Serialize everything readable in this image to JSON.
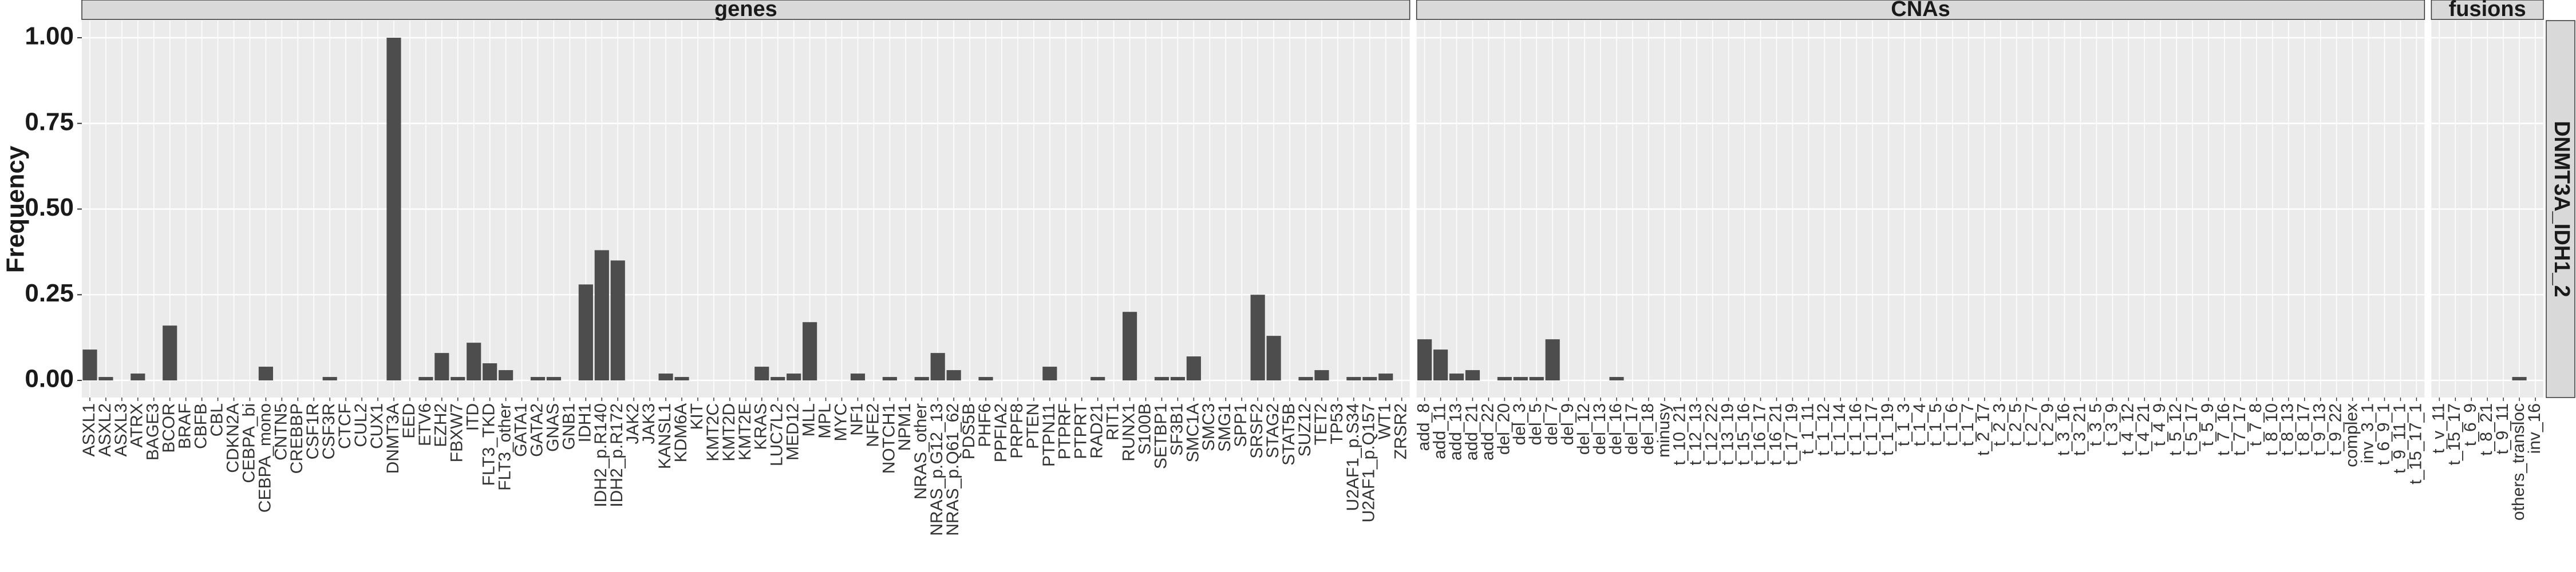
{
  "chart_data": {
    "type": "bar",
    "y_label": "Frequency",
    "row_label": "DNMT3A_IDH1_2",
    "color": "#4d4d4d",
    "grid": true,
    "ylim": [
      -0.05,
      1.05
    ],
    "yticks": [
      {
        "value": 0,
        "label": "0.00"
      },
      {
        "value": 0.25,
        "label": "0.25"
      },
      {
        "value": 0.5,
        "label": "0.50"
      },
      {
        "value": 0.75,
        "label": "0.75"
      },
      {
        "value": 1,
        "label": "1.00"
      }
    ],
    "facets": [
      {
        "name": "genes",
        "categories": [
          "ASXL1",
          "ASXL2",
          "ASXL3",
          "ATRX",
          "BAGE3",
          "BCOR",
          "BRAF",
          "CBFB",
          "CBL",
          "CDKN2A",
          "CEBPA_bi",
          "CEBPA_mono",
          "CNTN5",
          "CREBBP",
          "CSF1R",
          "CSF3R",
          "CTCF",
          "CUL2",
          "CUX1",
          "DNMT3A",
          "EED",
          "ETV6",
          "EZH2",
          "FBXW7",
          "ITD",
          "FLT3_TKD",
          "FLT3_other",
          "GATA1",
          "GATA2",
          "GNAS",
          "GNB1",
          "IDH1",
          "IDH2_p.R140",
          "IDH2_p.R172",
          "JAK2",
          "JAK3",
          "KANSL1",
          "KDM6A",
          "KIT",
          "KMT2C",
          "KMT2D",
          "KMT2E",
          "KRAS",
          "LUC7L2",
          "MED12",
          "MLL",
          "MPL",
          "MYC",
          "NF1",
          "NFE2",
          "NOTCH1",
          "NPM1",
          "NRAS_other",
          "NRAS_p.G12_13",
          "NRAS_p.Q61_62",
          "PDS5B",
          "PHF6",
          "PPFIA2",
          "PRPF8",
          "PTEN",
          "PTPN11",
          "PTPRF",
          "PTPRT",
          "RAD21",
          "RIT1",
          "RUNX1",
          "S100B",
          "SETBP1",
          "SF3B1",
          "SMC1A",
          "SMC3",
          "SMG1",
          "SPP1",
          "SRSF2",
          "STAG2",
          "STAT5B",
          "SUZ12",
          "TET2",
          "TP53",
          "U2AF1_p.S34",
          "U2AF1_p.Q157",
          "WT1",
          "ZRSR2"
        ],
        "values": [
          0.09,
          0.01,
          0,
          0.02,
          0,
          0.16,
          0,
          0,
          0,
          0,
          0,
          0.04,
          0,
          0,
          0,
          0.01,
          0,
          0,
          0,
          1.0,
          0,
          0.01,
          0.08,
          0.01,
          0.11,
          0.05,
          0.03,
          0,
          0.01,
          0.01,
          0,
          0.28,
          0.38,
          0.35,
          0,
          0,
          0.02,
          0.01,
          0,
          0,
          0,
          0,
          0.04,
          0.01,
          0.02,
          0.17,
          0,
          0,
          0.02,
          0,
          0.01,
          0,
          0.01,
          0.08,
          0.03,
          0,
          0.01,
          0,
          0,
          0,
          0.04,
          0,
          0,
          0.01,
          0,
          0.2,
          0,
          0.01,
          0.01,
          0.07,
          0,
          0,
          0,
          0.25,
          0.13,
          0,
          0.01,
          0.03,
          0,
          0.01,
          0.01,
          0.02,
          0
        ]
      },
      {
        "name": "CNAs",
        "categories": [
          "add_8",
          "add_11",
          "add_13",
          "add_21",
          "add_22",
          "del_20",
          "del_3",
          "del_5",
          "del_7",
          "del_9",
          "del_12",
          "del_13",
          "del_16",
          "del_17",
          "del_18",
          "minusy",
          "t_10_21",
          "t_12_13",
          "t_12_22",
          "t_13_19",
          "t_15_16",
          "t_16_17",
          "t_16_21",
          "t_17_19",
          "t_1_11",
          "t_1_12",
          "t_1_14",
          "t_1_16",
          "t_1_17",
          "t_1_19",
          "t_1_3",
          "t_1_4",
          "t_1_5",
          "t_1_6",
          "t_1_7",
          "t_2_17",
          "t_2_3",
          "t_2_5",
          "t_2_7",
          "t_2_9",
          "t_3_16",
          "t_3_21",
          "t_3_5",
          "t_3_9",
          "t_4_12",
          "t_4_21",
          "t_4_9",
          "t_5_12",
          "t_5_17",
          "t_5_9",
          "t_7_16",
          "t_7_17",
          "t_7_8",
          "t_8_10",
          "t_8_13",
          "t_8_17",
          "t_9_13",
          "t_9_22",
          "complex",
          "inv_3_1",
          "t_6_9_1",
          "t_9_11_1",
          "t_15_17_1"
        ],
        "values": [
          0.12,
          0.09,
          0.02,
          0.03,
          0,
          0.01,
          0.01,
          0.01,
          0.12,
          0,
          0,
          0,
          0.01,
          0,
          0,
          0,
          0,
          0,
          0,
          0,
          0,
          0,
          0,
          0,
          0,
          0,
          0,
          0,
          0,
          0,
          0,
          0,
          0,
          0,
          0,
          0,
          0,
          0,
          0,
          0,
          0,
          0,
          0,
          0,
          0,
          0,
          0,
          0,
          0,
          0,
          0,
          0,
          0,
          0,
          0,
          0,
          0,
          0,
          0,
          0,
          0,
          0,
          0
        ]
      },
      {
        "name": "fusions",
        "categories": [
          "t_v_11",
          "t_15_17",
          "t_6_9",
          "t_8_21",
          "t_9_11",
          "others_transloc",
          "inv_16"
        ],
        "values": [
          0,
          0,
          0,
          0,
          0,
          0.01,
          0
        ]
      }
    ]
  }
}
